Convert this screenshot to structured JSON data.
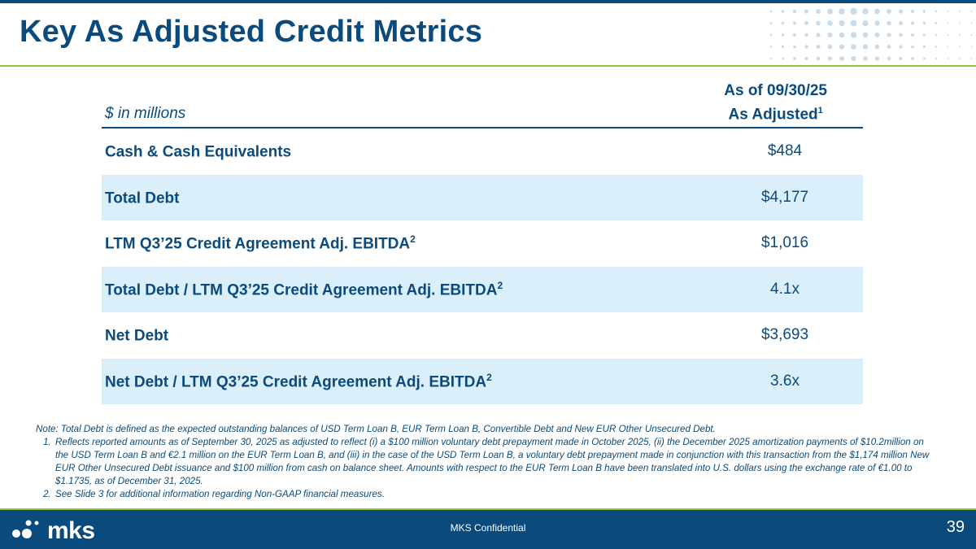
{
  "header": {
    "title": "Key As Adjusted Credit Metrics"
  },
  "table": {
    "units_label": "$ in millions",
    "column_header_line1": "As of 09/30/25",
    "column_header_line2": "As Adjusted",
    "column_header_footnote": "1",
    "rows": [
      {
        "label": "Cash & Cash Equivalents",
        "footnote": "",
        "value": "$484"
      },
      {
        "label": "Total Debt",
        "footnote": "",
        "value": "$4,177"
      },
      {
        "label": "LTM Q3’25 Credit Agreement Adj. EBITDA",
        "footnote": "2",
        "value": "$1,016"
      },
      {
        "label": "Total Debt / LTM Q3’25 Credit Agreement Adj. EBITDA",
        "footnote": "2",
        "value": "4.1x"
      },
      {
        "label": "Net Debt",
        "footnote": "",
        "value": "$3,693"
      },
      {
        "label": "Net Debt / LTM Q3’25 Credit Agreement Adj. EBITDA",
        "footnote": "2",
        "value": "3.6x"
      }
    ],
    "shaded_color": "#dbeffa"
  },
  "notes": {
    "intro": "Note: Total Debt is defined as the expected outstanding balances of USD Term Loan B, EUR Term Loan B, Convertible Debt and New EUR Other Unsecured Debt.",
    "items": [
      "Reflects reported amounts as of September 30, 2025 as adjusted to reflect (i) a $100 million voluntary debt prepayment made in October 2025, (ii) the December 2025 amortization payments of $10.2million on the USD Term Loan B and €2.1 million on the EUR Term Loan B, and (iii) in the case of the USD Term Loan B, a voluntary debt prepayment made in conjunction with this transaction from the $1,174 million New EUR Other Unsecured Debt issuance and $100 million from cash on balance sheet. Amounts with respect to the EUR Term Loan B have been translated into U.S. dollars using the exchange rate of €1.00 to $1.1735, as of December 31, 2025.",
      "See Slide 3 for additional information regarding Non-GAAP financial measures."
    ]
  },
  "footer": {
    "logo_text": "mks",
    "confidential": "MKS Confidential",
    "page_number": "39"
  },
  "colors": {
    "brand_blue": "#0a4a7c",
    "accent_green": "#8dc63f",
    "row_shade": "#dbeffa"
  }
}
